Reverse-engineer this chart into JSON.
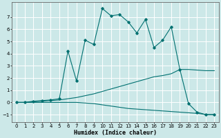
{
  "xlabel": "Humidex (Indice chaleur)",
  "xlim": [
    -0.5,
    23.5
  ],
  "ylim": [
    -1.6,
    8.2
  ],
  "yticks": [
    -1,
    0,
    1,
    2,
    3,
    4,
    5,
    6,
    7
  ],
  "xticks": [
    0,
    1,
    2,
    3,
    4,
    5,
    6,
    7,
    8,
    9,
    10,
    11,
    12,
    13,
    14,
    15,
    16,
    17,
    18,
    19,
    20,
    21,
    22,
    23
  ],
  "bg_color": "#cce8e8",
  "grid_color": "#ffffff",
  "line_color": "#007070",
  "series1_x": [
    0,
    1,
    2,
    3,
    4,
    5,
    6,
    7,
    8,
    9,
    10,
    11,
    12,
    13,
    14,
    15,
    16,
    17,
    18,
    19,
    20,
    21,
    22,
    23
  ],
  "series1_y": [
    0.0,
    0.0,
    0.1,
    0.15,
    0.2,
    0.3,
    4.2,
    1.75,
    5.1,
    4.75,
    7.7,
    7.1,
    7.2,
    6.6,
    5.7,
    6.8,
    4.5,
    5.1,
    6.2,
    2.7,
    -0.1,
    -0.8,
    -1.0,
    -1.0
  ],
  "series2_x": [
    0,
    1,
    2,
    3,
    4,
    5,
    6,
    7,
    8,
    9,
    10,
    11,
    12,
    13,
    14,
    15,
    16,
    17,
    18,
    19,
    20,
    21,
    22,
    23
  ],
  "series2_y": [
    0.0,
    0.0,
    0.05,
    0.1,
    0.15,
    0.2,
    0.3,
    0.4,
    0.55,
    0.7,
    0.9,
    1.1,
    1.3,
    1.5,
    1.7,
    1.9,
    2.1,
    2.2,
    2.35,
    2.7,
    2.7,
    2.65,
    2.6,
    2.6
  ],
  "series3_x": [
    0,
    1,
    2,
    3,
    4,
    5,
    6,
    7,
    8,
    9,
    10,
    11,
    12,
    13,
    14,
    15,
    16,
    17,
    18,
    19,
    20,
    21,
    22,
    23
  ],
  "series3_y": [
    0.0,
    0.0,
    0.0,
    0.0,
    0.0,
    0.0,
    0.0,
    0.0,
    -0.05,
    -0.1,
    -0.2,
    -0.3,
    -0.4,
    -0.5,
    -0.55,
    -0.6,
    -0.65,
    -0.7,
    -0.75,
    -0.8,
    -0.85,
    -0.9,
    -1.0,
    -1.0
  ]
}
